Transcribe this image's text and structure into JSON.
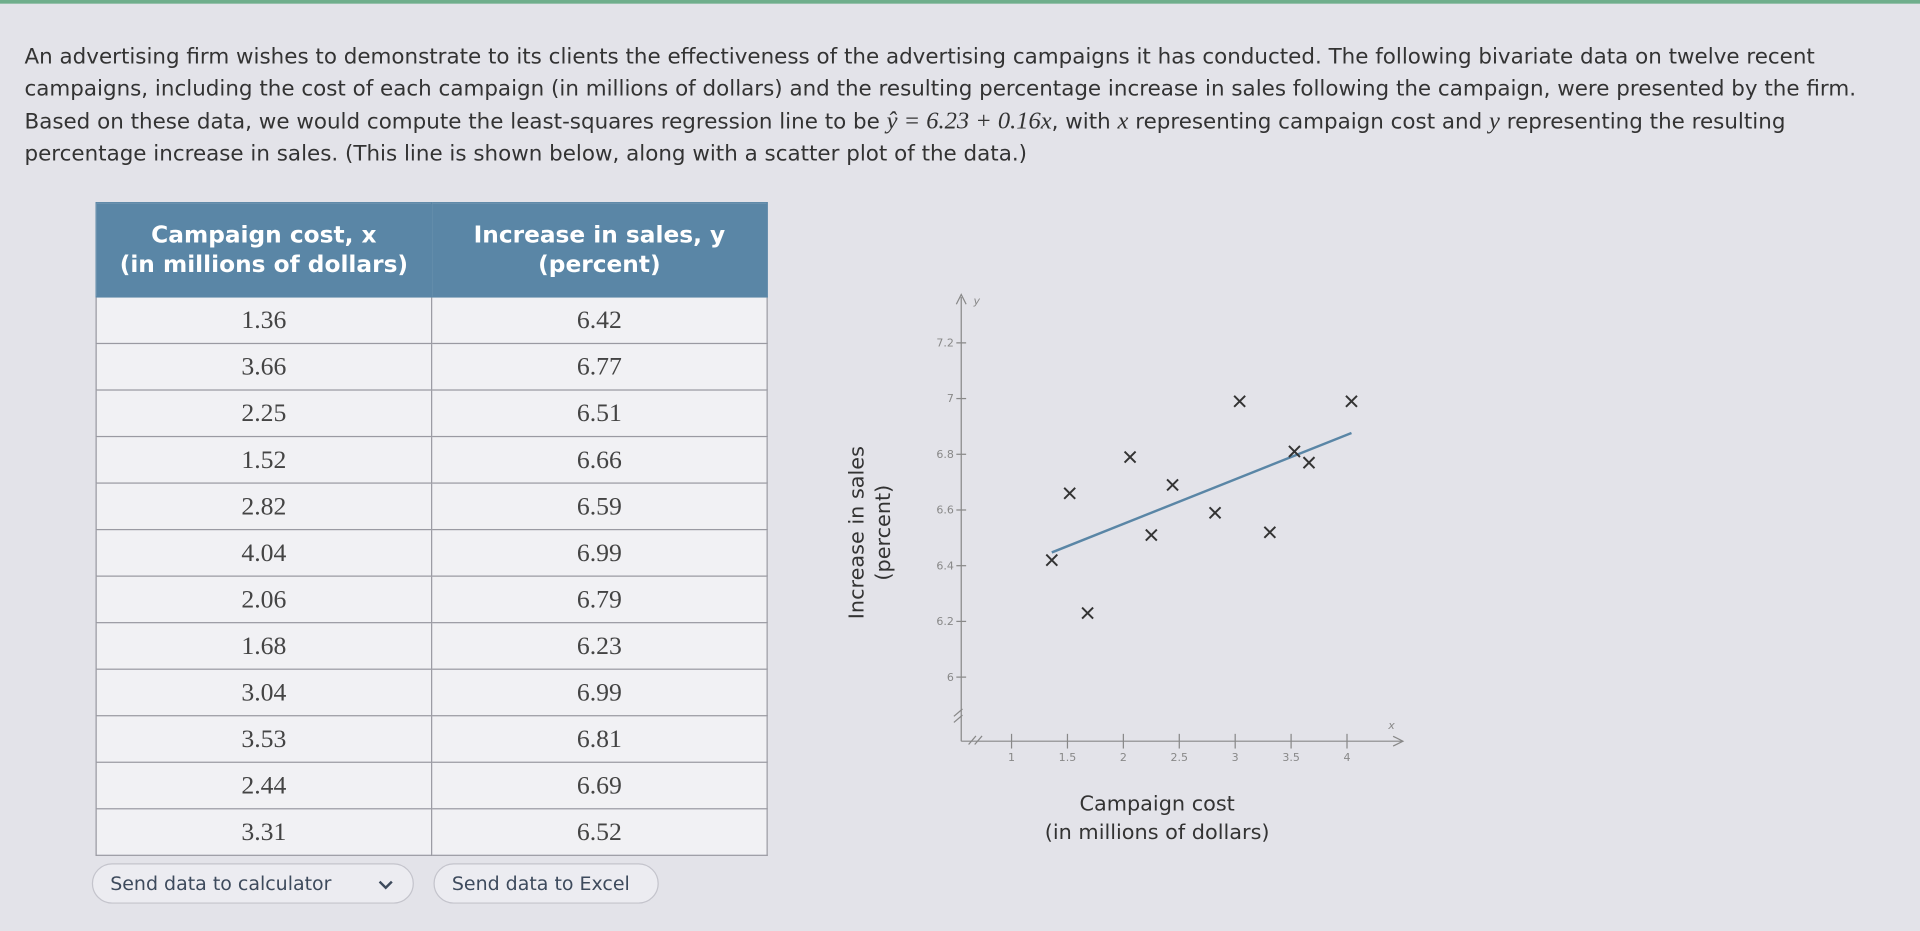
{
  "problem": {
    "parts": [
      "An advertising firm wishes to demonstrate to its clients the effectiveness of the advertising campaigns it has conducted. The following bivariate data on twelve recent campaigns, including the cost of each campaign (in millions of dollars) and the resulting percentage increase in sales following the campaign, were presented by the firm. Based on these data, we would compute the least-squares regression line to be ",
      "ŷ = 6.23 + 0.16x",
      ", with ",
      "x",
      " representing campaign cost and ",
      "y",
      " representing the resulting percentage increase in sales. (This line is shown below, along with a scatter plot of the data.)"
    ]
  },
  "table": {
    "columns": [
      [
        "Campaign cost, x",
        "(in millions of dollars)"
      ],
      [
        "Increase in sales, y",
        "(percent)"
      ]
    ],
    "rows": [
      [
        "1.36",
        "6.42"
      ],
      [
        "3.66",
        "6.77"
      ],
      [
        "2.25",
        "6.51"
      ],
      [
        "1.52",
        "6.66"
      ],
      [
        "2.82",
        "6.59"
      ],
      [
        "4.04",
        "6.99"
      ],
      [
        "2.06",
        "6.79"
      ],
      [
        "1.68",
        "6.23"
      ],
      [
        "3.04",
        "6.99"
      ],
      [
        "3.53",
        "6.81"
      ],
      [
        "2.44",
        "6.69"
      ],
      [
        "3.31",
        "6.52"
      ]
    ]
  },
  "buttons": {
    "calculator": "Send data to calculator",
    "excel": "Send data to Excel"
  },
  "chart_data": {
    "type": "scatter",
    "x_label": "Campaign cost",
    "x_label_unit": "(in millions of dollars)",
    "y_label": "Increase in sales",
    "y_label_unit": "(percent)",
    "x_axis_letter": "x",
    "y_axis_letter": "y",
    "x": [
      1.36,
      3.66,
      2.25,
      1.52,
      2.82,
      4.04,
      2.06,
      1.68,
      3.04,
      3.53,
      2.44,
      3.31
    ],
    "series": [
      {
        "color": "#333333",
        "values": [
          6.42,
          6.77,
          6.51,
          6.66,
          6.59,
          6.99,
          6.79,
          6.23,
          6.99,
          6.81,
          6.69,
          6.52
        ]
      }
    ],
    "regression": {
      "intercept": 6.23,
      "slope": 0.16,
      "color": "#5a86a6"
    },
    "xlim": [
      0.55,
      4.5
    ],
    "ylim": [
      5.77,
      7.4
    ],
    "xticks": [
      1,
      1.5,
      2,
      2.5,
      3,
      3.5,
      4
    ],
    "yticks": [
      6,
      6.2,
      6.4,
      6.6,
      6.8,
      7,
      7.2
    ]
  }
}
